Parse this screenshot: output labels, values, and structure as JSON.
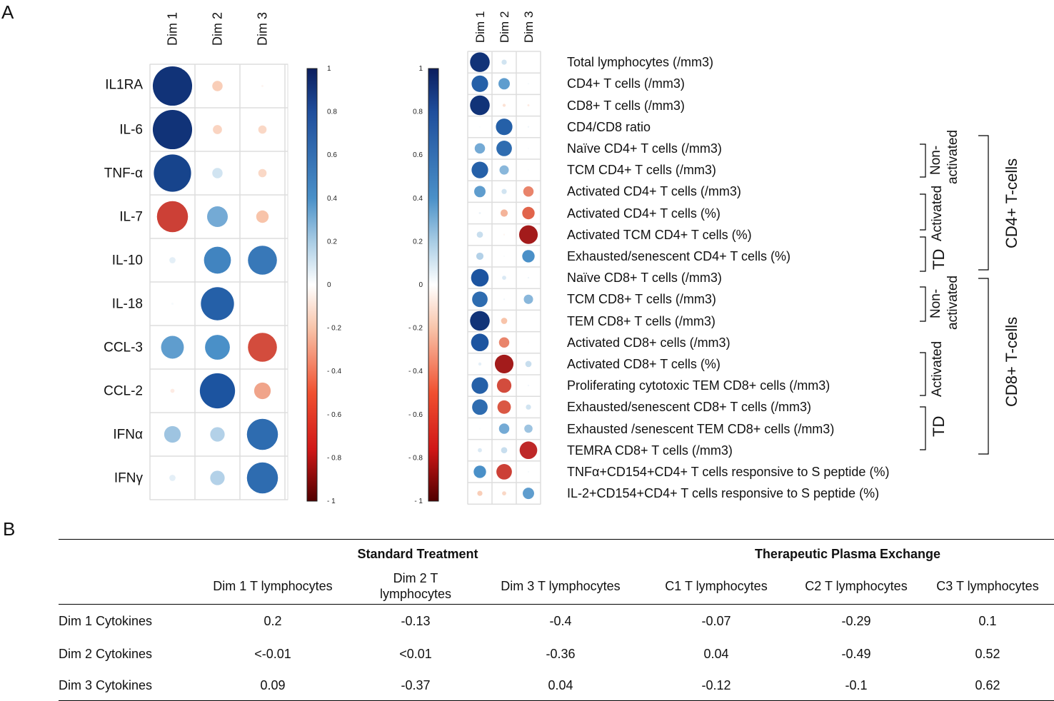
{
  "panel_a_label": "A",
  "panel_b_label": "B",
  "chart_data": [
    {
      "type": "heatmap",
      "title": "",
      "columns": [
        "Dim 1",
        "Dim 2",
        "Dim 3"
      ],
      "rows": [
        "IL1RA",
        "IL-6",
        "TNF-α",
        "IL-7",
        "IL-10",
        "IL-18",
        "CCL-3",
        "CCL-2",
        "IFNα",
        "IFNγ"
      ],
      "values": [
        [
          0.95,
          -0.25,
          -0.05
        ],
        [
          0.95,
          -0.22,
          -0.2
        ],
        [
          0.9,
          0.25,
          -0.2
        ],
        [
          -0.75,
          0.5,
          -0.3
        ],
        [
          0.15,
          0.65,
          0.7
        ],
        [
          0.05,
          0.8,
          0.0
        ],
        [
          0.55,
          0.6,
          -0.7
        ],
        [
          -0.1,
          0.85,
          -0.4
        ],
        [
          0.4,
          0.35,
          0.75
        ],
        [
          0.15,
          0.35,
          0.75
        ]
      ],
      "colorbar_ticks": [
        "1",
        "0.8",
        "0.6",
        "0.4",
        "0.2",
        "0",
        "- 0.2",
        "- 0.4",
        "- 0.6",
        "- 0.8",
        "- 1"
      ],
      "value_range": [
        -1,
        1
      ]
    },
    {
      "type": "heatmap",
      "title": "",
      "columns": [
        "Dim 1",
        "Dim 2",
        "Dim 3"
      ],
      "rows": [
        "Total lymphocytes (/mm3)",
        "CD4+ T cells (/mm3)",
        "CD8+ T cells (/mm3)",
        "CD4/CD8 ratio",
        "Naïve CD4+ T cells (/mm3)",
        "TCM CD4+ T cells (/mm3)",
        "Activated CD4+ T cells (/mm3)",
        "Activated CD4+ T cells (%)",
        "Activated TCM CD4+ T cells (%)",
        "Exhausted/senescent CD4+ T cells (%)",
        "Naïve CD8+ T cells (/mm3)",
        "TCM CD8+ T cells (/mm3)",
        "TEM CD8+ T cells (/mm3)",
        "Activated CD8+ cells (/mm3)",
        "Activated CD8+ T cells (%)",
        "Proliferating cytotoxic TEM CD8+ cells (/mm3)",
        "Exhausted/senescent CD8+ T cells (/mm3)",
        "Exhausted /senescent TEM CD8+ cells (/mm3)",
        "TEMRA CD8+ T cells (/mm3)",
        "TNFα+CD154+CD4+ T cells responsive to S peptide (%)",
        "IL-2+CD154+CD4+ T cells responsive to S peptide (%)"
      ],
      "values": [
        [
          0.95,
          0.25,
          0.0
        ],
        [
          0.8,
          0.55,
          0.05
        ],
        [
          0.95,
          -0.15,
          -0.1
        ],
        [
          0.02,
          0.8,
          0.08
        ],
        [
          0.5,
          0.75,
          0.03
        ],
        [
          0.8,
          0.45,
          0.02
        ],
        [
          0.55,
          0.25,
          -0.5
        ],
        [
          0.1,
          -0.35,
          -0.6
        ],
        [
          0.3,
          -0.05,
          -0.9
        ],
        [
          0.35,
          0.03,
          0.6
        ],
        [
          0.85,
          0.2,
          0.08
        ],
        [
          0.75,
          0.08,
          0.45
        ],
        [
          0.95,
          -0.3,
          0.0
        ],
        [
          0.85,
          -0.5,
          0.02
        ],
        [
          0.15,
          -0.9,
          0.3
        ],
        [
          0.8,
          -0.7,
          0.06
        ],
        [
          0.75,
          -0.65,
          0.25
        ],
        [
          0.02,
          0.5,
          0.4
        ],
        [
          0.2,
          0.3,
          -0.85
        ],
        [
          0.6,
          -0.75,
          0.05
        ],
        [
          -0.25,
          -0.2,
          0.55
        ]
      ],
      "colorbar_ticks": [
        "1",
        "0.8",
        "0.6",
        "0.4",
        "0.2",
        "0",
        "- 0.2",
        "- 0.4",
        "- 0.6",
        "- 0.8",
        "- 1"
      ],
      "value_range": [
        -1,
        1
      ]
    }
  ],
  "groups": {
    "cd4_non_activated": "Non-activated",
    "cd4_non_activated_l1": "Non-",
    "cd4_non_activated_l2": "activated",
    "cd4_activated": "Activated",
    "cd4_td": "TD",
    "cd8_non_activated_l1": "Non-",
    "cd8_non_activated_l2": "activated",
    "cd8_activated": "Activated",
    "cd8_td": "TD",
    "cd4_tcells": "CD4+ T-cells",
    "cd8_tcells": "CD8+ T-cells"
  },
  "table": {
    "group_headers": [
      "Standard Treatment",
      "Therapeutic Plasma Exchange"
    ],
    "columns": [
      "Dim 1 T lymphocytes",
      "Dim 2 T lymphocytes",
      "Dim 3 T lymphocytes",
      "C1  T lymphocytes",
      "C2 T lymphocytes",
      "C3 T lymphocytes"
    ],
    "col2_line1": "Dim 2 T",
    "col2_line2": "lymphocytes",
    "rows": [
      {
        "label": "Dim 1 Cytokines",
        "values": [
          "0.2",
          "-0.13",
          "-0.4",
          "-0.07",
          "-0.29",
          "0.1"
        ]
      },
      {
        "label": "Dim 2 Cytokines",
        "values": [
          "<-0.01",
          "<0.01",
          "-0.36",
          "0.04",
          "-0.49",
          "0.52"
        ]
      },
      {
        "label": "Dim 3 Cytokines",
        "values": [
          "0.09",
          "-0.37",
          "0.04",
          "-0.12",
          "-0.1",
          "0.62"
        ]
      }
    ]
  }
}
